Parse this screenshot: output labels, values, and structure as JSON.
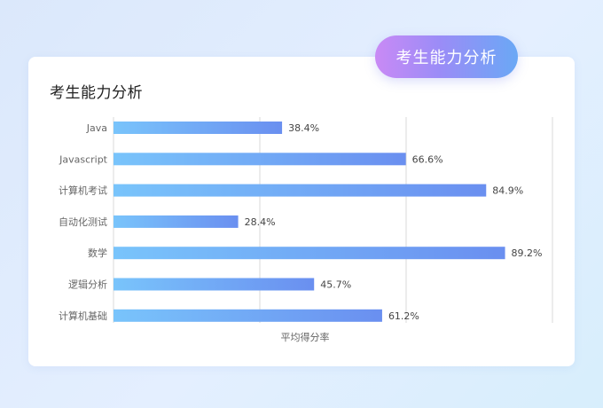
{
  "badge": {
    "label": "考生能力分析"
  },
  "card": {
    "title": "考生能力分析"
  },
  "colors": {
    "bar_start": "#79c4fb",
    "bar_end": "#6a8ff0",
    "gridline": "#d8d8d8"
  },
  "chart_data": {
    "type": "bar",
    "orientation": "horizontal",
    "title": "考生能力分析",
    "xlabel": "平均得分率",
    "ylabel": "",
    "categories": [
      "Java",
      "Javascript",
      "计算机考试",
      "自动化测试",
      "数学",
      "逻辑分析",
      "计算机基础"
    ],
    "values": [
      38.4,
      66.6,
      84.9,
      28.4,
      89.2,
      45.7,
      61.2
    ],
    "value_labels": [
      "38.4%",
      "66.6%",
      "84.9%",
      "28.4%",
      "89.2%",
      "45.7%",
      "61.2%"
    ],
    "xlim": [
      0,
      100
    ],
    "grid": true,
    "legend": "none"
  }
}
